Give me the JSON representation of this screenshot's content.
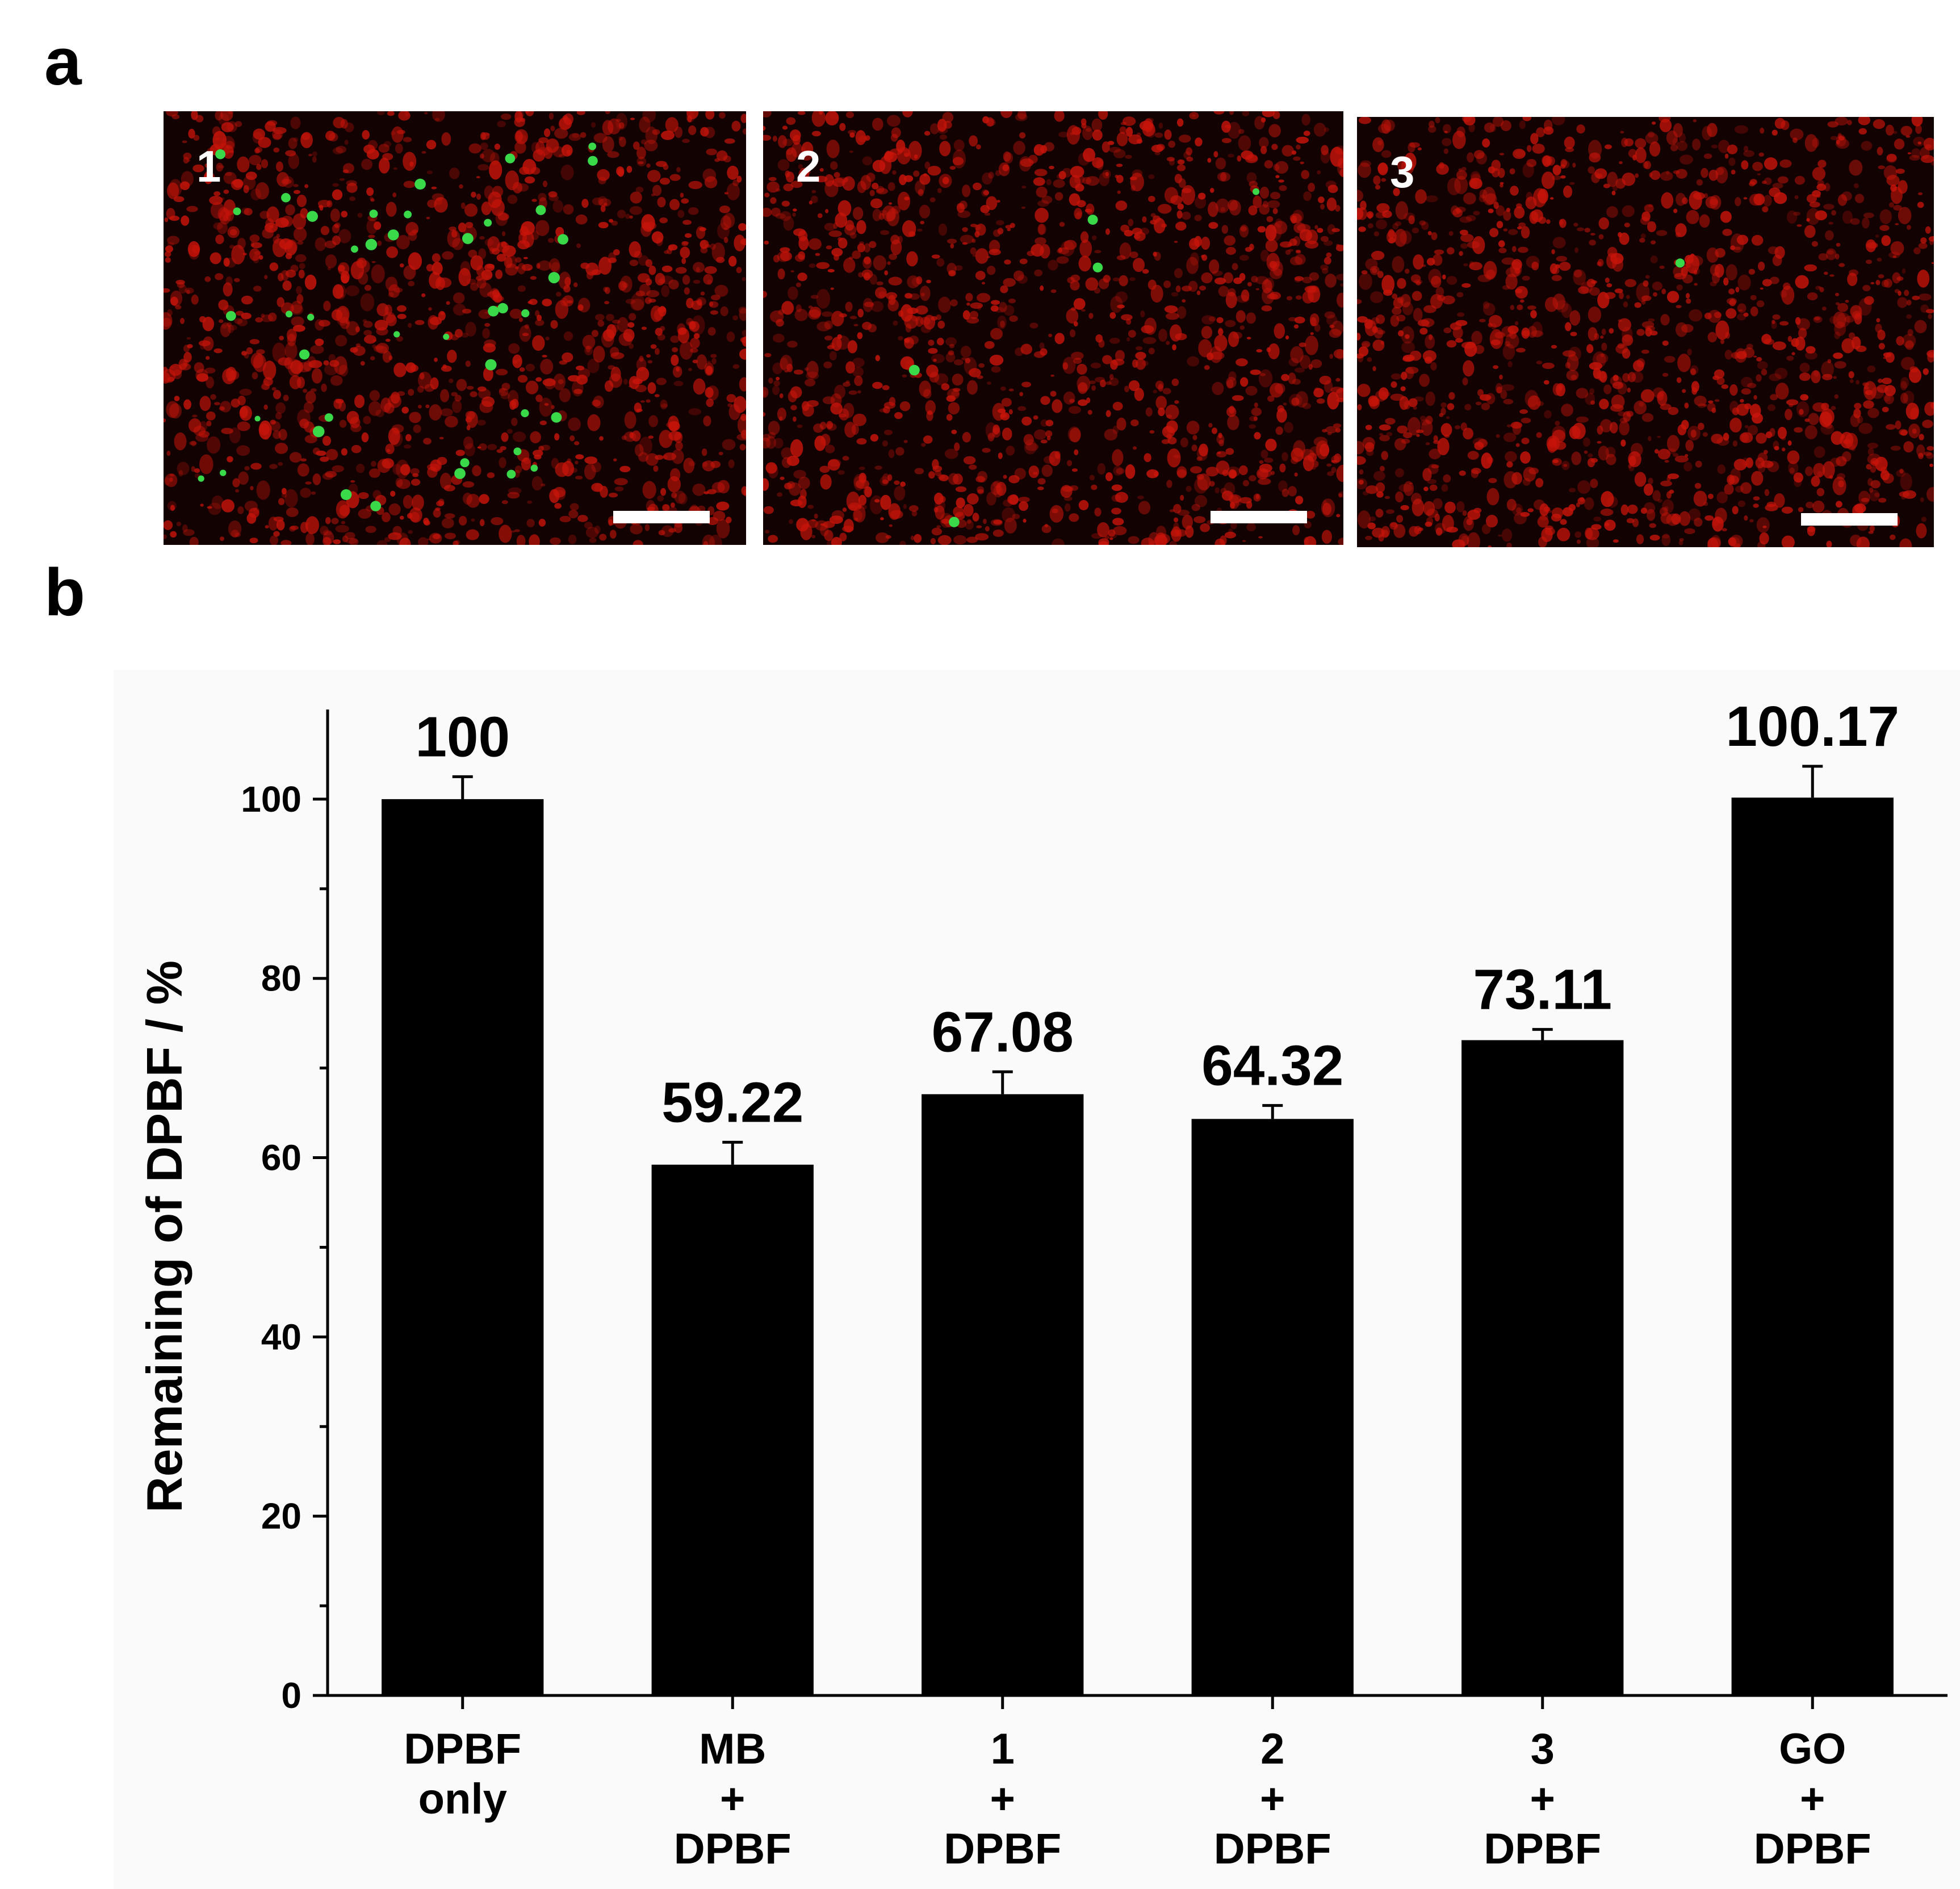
{
  "panel_labels": {
    "a": "a",
    "b": "b"
  },
  "micrographs": [
    {
      "label": "1",
      "green_level": "many"
    },
    {
      "label": "2",
      "green_level": "few"
    },
    {
      "label": "3",
      "green_level": "very few"
    }
  ],
  "colors": {
    "bar": "#000000",
    "micrograph_bg": "#120202",
    "red_stain": "#c8140a",
    "green_stain": "#39d94a",
    "scale_bar": "#ffffff"
  },
  "chart_data": {
    "type": "bar",
    "categories": [
      [
        "DPBF",
        "only"
      ],
      [
        "MB",
        "+",
        "DPBF"
      ],
      [
        "1",
        "+",
        "DPBF"
      ],
      [
        "2",
        "+",
        "DPBF"
      ],
      [
        "3",
        "+",
        "DPBF"
      ],
      [
        "GO",
        "+",
        "DPBF"
      ]
    ],
    "values": [
      100,
      59.22,
      67.08,
      64.32,
      73.11,
      100.17
    ],
    "errors": [
      2.5,
      2.5,
      2.5,
      1.5,
      1.2,
      3.5
    ],
    "data_labels": [
      "100",
      "59.22",
      "67.08",
      "64.32",
      "73.11",
      "100.17"
    ],
    "xlabel": "",
    "ylabel": "Remaining of DPBF / %",
    "ylim": [
      0,
      110
    ],
    "yticks": [
      0,
      20,
      40,
      60,
      80,
      100
    ],
    "grid": false,
    "legend": "none"
  }
}
